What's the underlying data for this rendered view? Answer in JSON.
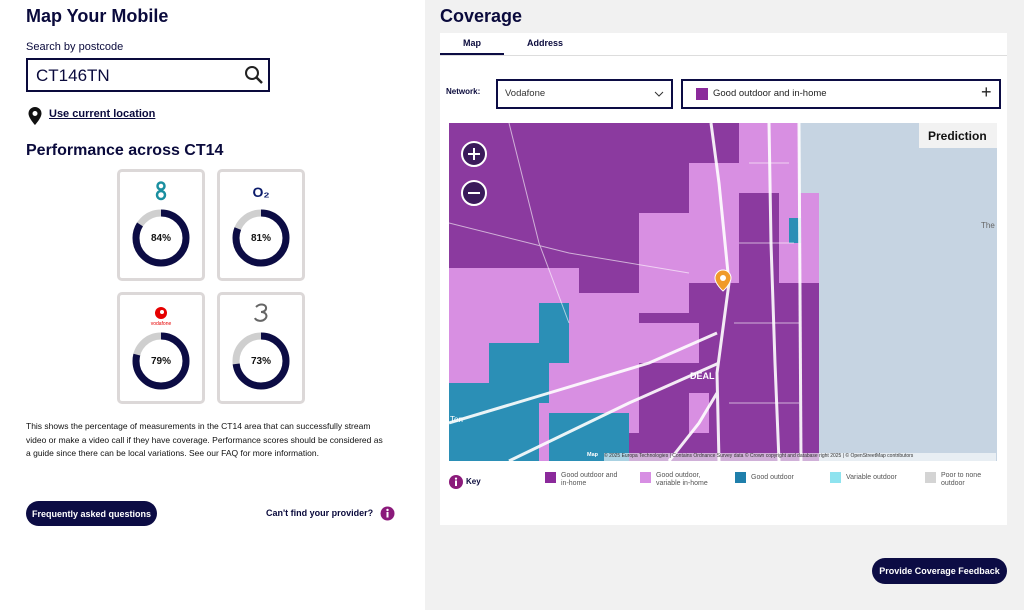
{
  "left": {
    "title": "Map Your Mobile",
    "search_label": "Search by postcode",
    "search_value": "CT146TN",
    "location_link": "Use current location",
    "performance_title": "Performance across CT14",
    "operators": [
      {
        "score": {
          "value": 84,
          "label": "84%"
        }
      },
      {
        "logo": "O₂",
        "score": {
          "value": 81,
          "label": "81%"
        }
      },
      {
        "logo": "vodafone",
        "score": {
          "value": 79,
          "label": "79%"
        }
      },
      {
        "score": {
          "value": 73,
          "label": "73%"
        }
      }
    ],
    "description": "This shows the percentage of measurements in the CT14 area that can successfully stream video or make a video call if they have coverage. Performance scores should be considered as a guide since there can be local variations. See our FAQ for more information.",
    "faq_button": "Frequently asked questions",
    "provider_link": "Can't find your provider?"
  },
  "right": {
    "title": "Coverage",
    "tabs": [
      "Map",
      "Address"
    ],
    "network_label": "Network:",
    "network_value": "Vodafone",
    "filter_value": "Good outdoor and in-home",
    "map": {
      "prediction": "Prediction",
      "place_labels": [
        "DEAL",
        "The",
        "Ten"
      ],
      "logo": "Map",
      "attribution": "© 2025 Europa Technologies | Contains Ordnance Survey data © Crown copyright and database right 2025 | © OpenStreetMap contributors"
    },
    "key_label": "Key",
    "key": [
      {
        "label": "Good outdoor and in-home",
        "color": "#8b2a9b"
      },
      {
        "label": "Good outdoor, variable in-home",
        "color": "#d78ee3"
      },
      {
        "label": "Good outdoor",
        "color": "#1f7fab"
      },
      {
        "label": "Variable outdoor",
        "color": "#8ee3ef"
      },
      {
        "label": "Poor to none outdoor",
        "color": "#d4d4d4"
      }
    ],
    "feedback_button": "Provide Coverage Feedback"
  }
}
